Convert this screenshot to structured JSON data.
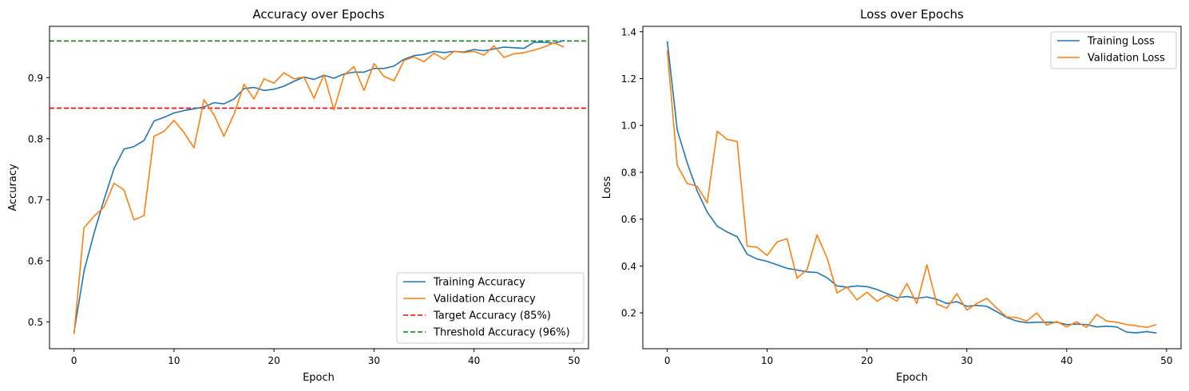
{
  "chart_data": [
    {
      "type": "line",
      "title": "Accuracy over Epochs",
      "xlabel": "Epoch",
      "ylabel": "Accuracy",
      "xlim": [
        -2.45,
        51.45
      ],
      "ylim": [
        0.456,
        0.984
      ],
      "xticks": [
        0,
        10,
        20,
        30,
        40,
        50
      ],
      "yticks": [
        0.5,
        0.6,
        0.7,
        0.8,
        0.9
      ],
      "ytick_labels": [
        "0.5",
        "0.6",
        "0.7",
        "0.8",
        "0.9"
      ],
      "grid": false,
      "legend_position": "lower-right",
      "x": [
        0,
        1,
        2,
        3,
        4,
        5,
        6,
        7,
        8,
        9,
        10,
        11,
        12,
        13,
        14,
        15,
        16,
        17,
        18,
        19,
        20,
        21,
        22,
        23,
        24,
        25,
        26,
        27,
        28,
        29,
        30,
        31,
        32,
        33,
        34,
        35,
        36,
        37,
        38,
        39,
        40,
        41,
        42,
        43,
        44,
        45,
        46,
        47,
        48,
        49
      ],
      "series": [
        {
          "name": "Training Accuracy",
          "color": "#1f77b4",
          "values": [
            0.483,
            0.583,
            0.645,
            0.7,
            0.751,
            0.783,
            0.787,
            0.797,
            0.829,
            0.835,
            0.842,
            0.846,
            0.849,
            0.852,
            0.859,
            0.857,
            0.865,
            0.882,
            0.884,
            0.879,
            0.881,
            0.886,
            0.894,
            0.901,
            0.897,
            0.904,
            0.899,
            0.906,
            0.909,
            0.909,
            0.915,
            0.915,
            0.919,
            0.93,
            0.936,
            0.938,
            0.943,
            0.941,
            0.943,
            0.942,
            0.946,
            0.944,
            0.947,
            0.95,
            0.949,
            0.948,
            0.958,
            0.958,
            0.956,
            0.961
          ]
        },
        {
          "name": "Validation Accuracy",
          "color": "#ff7f0e",
          "values": [
            0.48,
            0.654,
            0.673,
            0.688,
            0.727,
            0.716,
            0.667,
            0.674,
            0.804,
            0.812,
            0.83,
            0.81,
            0.785,
            0.864,
            0.839,
            0.804,
            0.84,
            0.889,
            0.865,
            0.898,
            0.891,
            0.908,
            0.898,
            0.901,
            0.866,
            0.905,
            0.847,
            0.904,
            0.918,
            0.879,
            0.923,
            0.902,
            0.895,
            0.928,
            0.934,
            0.926,
            0.94,
            0.93,
            0.943,
            0.941,
            0.943,
            0.937,
            0.952,
            0.933,
            0.939,
            0.941,
            0.945,
            0.95,
            0.957,
            0.95
          ]
        }
      ],
      "reference_lines": [
        {
          "name": "Target Accuracy (85%)",
          "value": 0.85,
          "color": "#ff0000"
        },
        {
          "name": "Threshold Accuracy (96%)",
          "value": 0.96,
          "color": "#008000"
        }
      ]
    },
    {
      "type": "line",
      "title": "Loss over Epochs",
      "xlabel": "Epoch",
      "ylabel": "Loss",
      "xlim": [
        -2.45,
        51.45
      ],
      "ylim": [
        0.047,
        1.423
      ],
      "xticks": [
        0,
        10,
        20,
        30,
        40,
        50
      ],
      "yticks": [
        0.2,
        0.4,
        0.6,
        0.8,
        1.0,
        1.2,
        1.4
      ],
      "ytick_labels": [
        "0.2",
        "0.4",
        "0.6",
        "0.8",
        "1.0",
        "1.2",
        "1.4"
      ],
      "grid": false,
      "legend_position": "upper-right",
      "x": [
        0,
        1,
        2,
        3,
        4,
        5,
        6,
        7,
        8,
        9,
        10,
        11,
        12,
        13,
        14,
        15,
        16,
        17,
        18,
        19,
        20,
        21,
        22,
        23,
        24,
        25,
        26,
        27,
        28,
        29,
        30,
        31,
        32,
        33,
        34,
        35,
        36,
        37,
        38,
        39,
        40,
        41,
        42,
        43,
        44,
        45,
        46,
        47,
        48,
        49
      ],
      "series": [
        {
          "name": "Training Loss",
          "color": "#1f77b4",
          "values": [
            1.36,
            0.98,
            0.84,
            0.72,
            0.63,
            0.57,
            0.545,
            0.525,
            0.45,
            0.43,
            0.42,
            0.405,
            0.39,
            0.383,
            0.375,
            0.372,
            0.35,
            0.315,
            0.31,
            0.315,
            0.312,
            0.3,
            0.282,
            0.265,
            0.27,
            0.262,
            0.268,
            0.258,
            0.24,
            0.248,
            0.228,
            0.232,
            0.228,
            0.205,
            0.18,
            0.165,
            0.158,
            0.16,
            0.16,
            0.16,
            0.15,
            0.152,
            0.15,
            0.14,
            0.143,
            0.14,
            0.118,
            0.115,
            0.12,
            0.114
          ]
        },
        {
          "name": "Validation Loss",
          "color": "#ff7f0e",
          "values": [
            1.32,
            0.83,
            0.752,
            0.74,
            0.67,
            0.975,
            0.94,
            0.932,
            0.485,
            0.48,
            0.445,
            0.503,
            0.517,
            0.348,
            0.385,
            0.533,
            0.435,
            0.285,
            0.31,
            0.255,
            0.288,
            0.25,
            0.275,
            0.25,
            0.325,
            0.24,
            0.405,
            0.238,
            0.22,
            0.282,
            0.212,
            0.24,
            0.262,
            0.22,
            0.182,
            0.18,
            0.165,
            0.2,
            0.148,
            0.163,
            0.14,
            0.162,
            0.138,
            0.193,
            0.165,
            0.16,
            0.15,
            0.145,
            0.138,
            0.15
          ]
        }
      ]
    }
  ]
}
